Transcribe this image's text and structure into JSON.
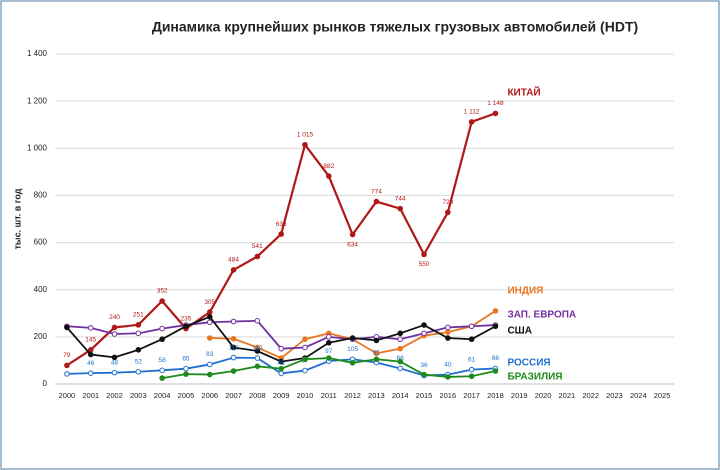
{
  "chart_data": {
    "type": "line",
    "title": "Динамика крупнейших рынков тяжелых грузовых автомобилей (HDT)",
    "y_label": "тыс. шт. в год",
    "categories": [
      "2000",
      "2001",
      "2002",
      "2003",
      "2004",
      "2005",
      "2006",
      "2007",
      "2008",
      "2009",
      "2010",
      "2011",
      "2012",
      "2013",
      "2014",
      "2015",
      "2016",
      "2017",
      "2018",
      "2019",
      "2020",
      "2021",
      "2022",
      "2023",
      "2024",
      "2025"
    ],
    "ylim": [
      0,
      1400
    ],
    "yticks": [
      0,
      200,
      400,
      600,
      800,
      {
        "value": 1000,
        "label": "1 000"
      },
      {
        "value": 1200,
        "label": "1 200"
      },
      {
        "value": 1400,
        "label": "1 400"
      }
    ],
    "grid": true,
    "series": [
      {
        "name": "КИТАЙ",
        "color": "#b01818",
        "marker": "filled",
        "values": [
          79,
          145,
          240,
          251,
          352,
          235,
          305,
          484,
          541,
          636,
          1015,
          882,
          634,
          774,
          744,
          550,
          728,
          1112,
          1148,
          null,
          null,
          null,
          null,
          null,
          null,
          null
        ],
        "value_labels": [
          "79",
          "145",
          "240",
          "251",
          "352",
          "235",
          "305",
          "484",
          "541",
          "636",
          "1 015",
          "882",
          "634",
          "774",
          "744",
          "550",
          "728",
          "1 112",
          "1 148",
          null,
          null,
          null,
          null,
          null,
          null,
          null
        ]
      },
      {
        "name": "ИНДИЯ",
        "color": "#e87722",
        "marker": "filled",
        "values": [
          null,
          null,
          null,
          null,
          null,
          null,
          195,
          192,
          155,
          110,
          190,
          215,
          190,
          130,
          150,
          205,
          220,
          245,
          310,
          null,
          null,
          null,
          null,
          null,
          null,
          null
        ]
      },
      {
        "name": "ЗАП. ЕВРОПА",
        "color": "#7030a0",
        "marker": "hollow",
        "values": [
          245,
          238,
          212,
          215,
          235,
          250,
          262,
          265,
          268,
          150,
          155,
          200,
          190,
          200,
          190,
          215,
          240,
          245,
          250,
          null,
          null,
          null,
          null,
          null,
          null,
          null
        ]
      },
      {
        "name": "США",
        "color": "#111111",
        "marker": "filled",
        "values": [
          240,
          125,
          113,
          145,
          190,
          245,
          285,
          155,
          140,
          95,
          110,
          175,
          195,
          185,
          215,
          250,
          195,
          190,
          245,
          null,
          null,
          null,
          null,
          null,
          null,
          null
        ]
      },
      {
        "name": "РОССИЯ",
        "color": "#1f6fd0",
        "marker": "hollow",
        "values": [
          43,
          46,
          48,
          52,
          58,
          65,
          83,
          112,
          110,
          45,
          57,
          97,
          105,
          91,
          66,
          36,
          40,
          61,
          66,
          null,
          null,
          null,
          null,
          null,
          null,
          null
        ],
        "value_labels": [
          null,
          "46",
          "48",
          "52",
          "58",
          "65",
          "83",
          "112",
          "110",
          "45",
          "57",
          "97",
          "105",
          "91",
          "66",
          "36",
          "40",
          "61",
          "66",
          null,
          null,
          null,
          null,
          null,
          null,
          null
        ]
      },
      {
        "name": "БРАЗИЛИЯ",
        "color": "#1e8a1e",
        "marker": "filled",
        "values": [
          null,
          null,
          null,
          null,
          25,
          42,
          40,
          55,
          75,
          65,
          105,
          110,
          90,
          105,
          95,
          40,
          30,
          33,
          55,
          null,
          null,
          null,
          null,
          null,
          null,
          null
        ]
      }
    ]
  }
}
